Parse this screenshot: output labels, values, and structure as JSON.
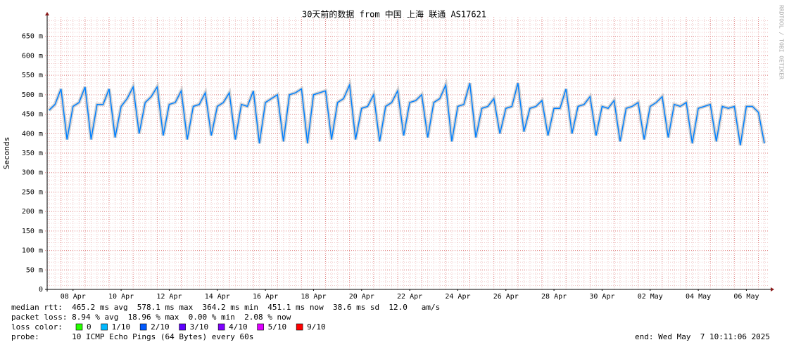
{
  "chart_data": {
    "type": "line",
    "title": "30天前的数据 from 中国 上海 联通 AS17621",
    "y_label": "Seconds",
    "watermark": "RRDTOOL / TOBI OETIKER",
    "xlim": [
      0.424,
      30.424
    ],
    "xticks": [
      {
        "value": 1.5,
        "label": "08 Apr"
      },
      {
        "value": 3.5,
        "label": "10 Apr"
      },
      {
        "value": 5.5,
        "label": "12 Apr"
      },
      {
        "value": 7.5,
        "label": "14 Apr"
      },
      {
        "value": 9.5,
        "label": "16 Apr"
      },
      {
        "value": 11.5,
        "label": "18 Apr"
      },
      {
        "value": 13.5,
        "label": "20 Apr"
      },
      {
        "value": 15.5,
        "label": "22 Apr"
      },
      {
        "value": 17.5,
        "label": "24 Apr"
      },
      {
        "value": 19.5,
        "label": "26 Apr"
      },
      {
        "value": 21.5,
        "label": "28 Apr"
      },
      {
        "value": 23.5,
        "label": "30 Apr"
      },
      {
        "value": 25.5,
        "label": "02 May"
      },
      {
        "value": 27.5,
        "label": "04 May"
      },
      {
        "value": 29.5,
        "label": "06 May"
      }
    ],
    "ylim": [
      0,
      700
    ],
    "yticks": [
      0,
      {
        "value": 50,
        "label": "50 m"
      },
      {
        "value": 100,
        "label": "100 m"
      },
      {
        "value": 150,
        "label": "150 m"
      },
      {
        "value": 200,
        "label": "200 m"
      },
      {
        "value": 250,
        "label": "250 m"
      },
      {
        "value": 300,
        "label": "300 m"
      },
      {
        "value": 350,
        "label": "350 m"
      },
      {
        "value": 400,
        "label": "400 m"
      },
      {
        "value": 450,
        "label": "450 m"
      },
      {
        "value": 500,
        "label": "500 m"
      },
      {
        "value": 550,
        "label": "550 m"
      },
      {
        "value": 600,
        "label": "600 m"
      },
      {
        "value": 650,
        "label": "650 m"
      }
    ],
    "grid": true,
    "x": [
      0.5,
      0.75,
      1,
      1.25,
      1.5,
      1.75,
      2,
      2.25,
      2.5,
      2.75,
      3,
      3.25,
      3.5,
      3.75,
      4,
      4.25,
      4.5,
      4.75,
      5,
      5.25,
      5.5,
      5.75,
      6,
      6.25,
      6.5,
      6.75,
      7,
      7.25,
      7.5,
      7.75,
      8,
      8.25,
      8.5,
      8.75,
      9,
      9.25,
      9.5,
      9.75,
      10,
      10.25,
      10.5,
      10.75,
      11,
      11.25,
      11.5,
      11.75,
      12,
      12.25,
      12.5,
      12.75,
      13,
      13.25,
      13.5,
      13.75,
      14,
      14.25,
      14.5,
      14.75,
      15,
      15.25,
      15.5,
      15.75,
      16,
      16.25,
      16.5,
      16.75,
      17,
      17.25,
      17.5,
      17.75,
      18,
      18.25,
      18.5,
      18.75,
      19,
      19.25,
      19.5,
      19.75,
      20,
      20.25,
      20.5,
      20.75,
      21,
      21.25,
      21.5,
      21.75,
      22,
      22.25,
      22.5,
      22.75,
      23,
      23.25,
      23.5,
      23.75,
      24,
      24.25,
      24.5,
      24.75,
      25,
      25.25,
      25.5,
      25.75,
      26,
      26.25,
      26.5,
      26.75,
      27,
      27.25,
      27.5,
      27.75,
      28,
      28.25,
      28.5,
      28.75,
      29,
      29.25,
      29.5,
      29.75,
      30,
      30.25
    ],
    "series": [
      {
        "color": "#0080ff",
        "values": [
          460,
          475,
          515,
          385,
          470,
          480,
          520,
          385,
          475,
          475,
          515,
          390,
          470,
          490,
          520,
          400,
          480,
          495,
          520,
          395,
          475,
          480,
          510,
          385,
          470,
          475,
          505,
          395,
          470,
          480,
          505,
          385,
          475,
          470,
          510,
          375,
          480,
          490,
          500,
          380,
          500,
          505,
          515,
          375,
          500,
          505,
          510,
          385,
          480,
          490,
          525,
          385,
          465,
          470,
          500,
          380,
          470,
          480,
          510,
          395,
          480,
          485,
          500,
          390,
          480,
          490,
          525,
          380,
          470,
          475,
          530,
          390,
          465,
          470,
          490,
          400,
          465,
          470,
          530,
          405,
          465,
          470,
          485,
          395,
          465,
          465,
          515,
          400,
          470,
          475,
          495,
          395,
          470,
          465,
          485,
          380,
          465,
          470,
          480,
          385,
          470,
          480,
          495,
          390,
          475,
          470,
          480,
          375,
          465,
          470,
          475,
          380,
          470,
          465,
          470,
          370,
          470,
          470,
          455,
          375
        ]
      }
    ],
    "stats": [
      "median rtt:  465.2 ms avg  578.1 ms max  364.2 ms min  451.1 ms now  38.6 ms sd  12.0   am/s",
      "packet loss: 8.94 % avg  18.96 % max  0.00 % min  2.08 % now"
    ],
    "loss_title": "loss color:",
    "loss_colors": [
      {
        "label": "0",
        "color": "#26ff00"
      },
      {
        "label": "1/10",
        "color": "#00b8ff"
      },
      {
        "label": "2/10",
        "color": "#0059ff"
      },
      {
        "label": "3/10",
        "color": "#5e00ff"
      },
      {
        "label": "4/10",
        "color": "#7e00ff"
      },
      {
        "label": "5/10",
        "color": "#dd00ff"
      },
      {
        "label": "9/10",
        "color": "#ff0000"
      }
    ],
    "probe": "probe:       10 ICMP Echo Pings (64 Bytes) every 60s",
    "end": "end: Wed May  7 10:11:06 2025"
  }
}
